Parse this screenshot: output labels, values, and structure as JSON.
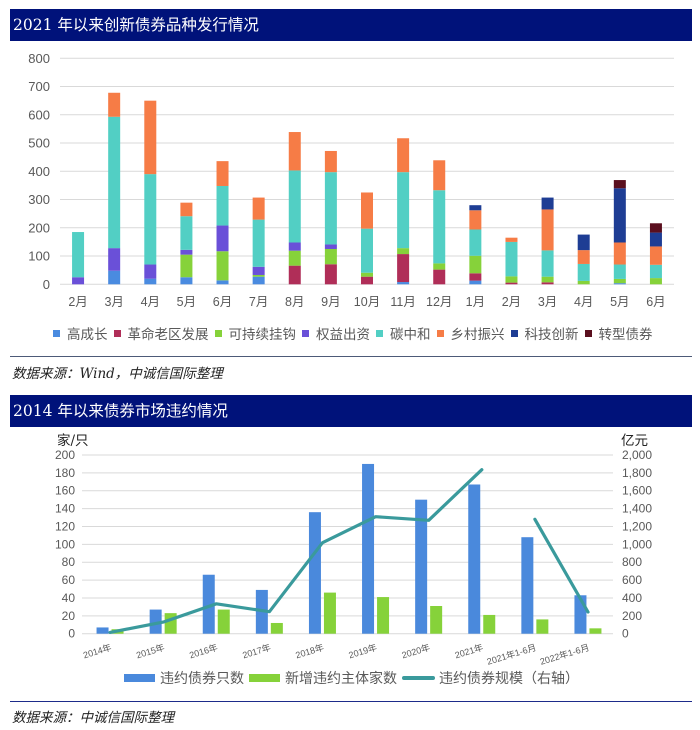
{
  "sources": [
    "数据来源：Wind，中诚信国际整理",
    "数据来源：中诚信国际整理"
  ],
  "chart_data": [
    {
      "type": "bar",
      "stacked": true,
      "title": "2021 年以来创新债券品种发行情况",
      "xlabel": "",
      "ylabel": "",
      "categories": [
        "2月",
        "3月",
        "4月",
        "5月",
        "6月",
        "7月",
        "8月",
        "9月",
        "10月",
        "11月",
        "12月",
        "1月",
        "2月",
        "3月",
        "4月",
        "5月",
        "6月"
      ],
      "ylim": [
        0,
        800
      ],
      "yticks": [
        0,
        100,
        200,
        300,
        400,
        500,
        600,
        700,
        800
      ],
      "ytick_labels": [
        "0",
        "100",
        "200",
        "300",
        "400",
        "500",
        "600",
        "700",
        "800"
      ],
      "grid": true,
      "legend_position": "bottom",
      "series": [
        {
          "name": "高成长",
          "color": "#4a8be0",
          "values": [
            0,
            48,
            20,
            25,
            14,
            27,
            0,
            0,
            0,
            8,
            0,
            13,
            0,
            0,
            0,
            4,
            0
          ]
        },
        {
          "name": "革命老区发展",
          "color": "#b02e58",
          "values": [
            0,
            0,
            0,
            0,
            0,
            0,
            66,
            71,
            27,
            99,
            52,
            26,
            6,
            7,
            0,
            0,
            0
          ]
        },
        {
          "name": "可持续挂钩",
          "color": "#86d23a",
          "values": [
            0,
            0,
            0,
            80,
            103,
            6,
            53,
            54,
            14,
            21,
            22,
            62,
            22,
            20,
            12,
            15,
            22
          ]
        },
        {
          "name": "权益出资",
          "color": "#6a50d8",
          "values": [
            25,
            80,
            50,
            17,
            91,
            29,
            29,
            16,
            0,
            0,
            0,
            0,
            0,
            0,
            0,
            0,
            0
          ]
        },
        {
          "name": "碳中和",
          "color": "#52cfc4",
          "values": [
            160,
            465,
            320,
            119,
            140,
            167,
            255,
            256,
            156,
            269,
            259,
            93,
            122,
            93,
            60,
            51,
            47
          ]
        },
        {
          "name": "乡村振兴",
          "color": "#f67c46",
          "values": [
            0,
            85,
            260,
            48,
            88,
            78,
            136,
            75,
            128,
            120,
            106,
            68,
            15,
            145,
            49,
            78,
            65
          ]
        },
        {
          "name": "科技创新",
          "color": "#1e3d94",
          "values": [
            0,
            0,
            0,
            0,
            0,
            0,
            0,
            0,
            0,
            0,
            0,
            18,
            0,
            42,
            55,
            192,
            49
          ]
        },
        {
          "name": "转型债券",
          "color": "#5a0f1e",
          "values": [
            0,
            0,
            0,
            0,
            0,
            0,
            0,
            0,
            0,
            0,
            0,
            0,
            0,
            0,
            0,
            29,
            33
          ]
        }
      ]
    },
    {
      "type": "bar+line",
      "title": "2014 年以来债券市场违约情况",
      "xlabel": "",
      "ylabel": "家/只",
      "y2label": "亿元",
      "categories": [
        "2014年",
        "2015年",
        "2016年",
        "2017年",
        "2018年",
        "2019年",
        "2020年",
        "2021年",
        "2021年1-6月",
        "2022年1-6月"
      ],
      "ylim": [
        0,
        200
      ],
      "yticks": [
        0,
        20,
        40,
        60,
        80,
        100,
        120,
        140,
        160,
        180,
        200
      ],
      "ytick_labels": [
        "0",
        "20",
        "40",
        "60",
        "80",
        "100",
        "120",
        "140",
        "160",
        "180",
        "200"
      ],
      "y2lim": [
        0,
        2000
      ],
      "y2ticks": [
        0,
        200,
        400,
        600,
        800,
        1000,
        1200,
        1400,
        1600,
        1800,
        2000
      ],
      "y2tick_labels": [
        "0",
        "200",
        "400",
        "600",
        "800",
        "1,000",
        "1,200",
        "1,400",
        "1,600",
        "1,800",
        "2,000"
      ],
      "grid": true,
      "legend_position": "bottom",
      "series": [
        {
          "name": "违约债券只数",
          "type": "bar",
          "axis": "left",
          "color": "#4a89dc",
          "values": [
            7,
            27,
            66,
            49,
            136,
            190,
            150,
            167,
            108,
            43
          ]
        },
        {
          "name": "新增违约主体家数",
          "type": "bar",
          "axis": "left",
          "color": "#86d23a",
          "values": [
            5,
            23,
            27,
            12,
            46,
            41,
            31,
            21,
            16,
            6
          ]
        },
        {
          "name": "违约债券规模（右轴）",
          "type": "line",
          "axis": "right",
          "color": "#3a9a9c",
          "values": [
            15,
            130,
            335,
            246,
            1019,
            1310,
            1269,
            1836,
            1280,
            243
          ],
          "segments": [
            [
              0,
              7
            ],
            [
              8,
              9
            ]
          ]
        }
      ]
    }
  ]
}
